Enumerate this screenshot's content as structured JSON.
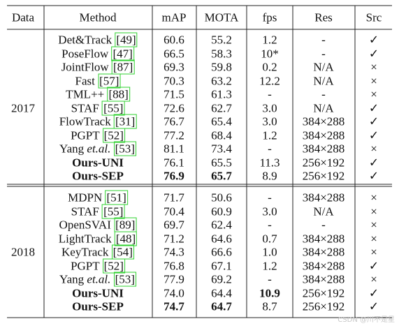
{
  "header": [
    "Data",
    "Method",
    "mAP",
    "MOTA",
    "fps",
    "Res",
    "Src"
  ],
  "groups": [
    {
      "label": "2017",
      "rows": [
        {
          "method": {
            "name": "Det&Track",
            "ref": "[49]"
          },
          "cells": [
            "60.6",
            "55.2",
            "1.2",
            "-",
            "✓"
          ]
        },
        {
          "method": {
            "name": "PoseFlow",
            "ref": "[47]"
          },
          "cells": [
            "66.5",
            "58.3",
            "10*",
            "-",
            "✓"
          ]
        },
        {
          "method": {
            "name": "JointFlow",
            "ref": "[87]"
          },
          "cells": [
            "69.3",
            "59.8",
            "0.2",
            "N/A",
            "×"
          ]
        },
        {
          "method": {
            "name": "Fast",
            "ref": "[57]"
          },
          "cells": [
            "70.3",
            "63.2",
            "12.2",
            "N/A",
            "×"
          ]
        },
        {
          "method": {
            "name": "TML++",
            "ref": "[88]"
          },
          "cells": [
            "71.5",
            "61.3",
            "-",
            "-",
            "×"
          ]
        },
        {
          "method": {
            "name": "STAF",
            "ref": "[55]"
          },
          "cells": [
            "72.6",
            "62.7",
            "3.0",
            "N/A",
            "✓"
          ]
        },
        {
          "method": {
            "name": "FlowTrack",
            "ref": "[31]"
          },
          "cells": [
            "76.7",
            "65.4",
            "3.0",
            "384×288",
            "✓"
          ]
        },
        {
          "method": {
            "name": "PGPT",
            "ref": "[52]"
          },
          "cells": [
            "77.2",
            "68.4",
            "1.2",
            "384×288",
            "✓"
          ]
        },
        {
          "method": {
            "name": "Yang",
            "italic": "et.al.",
            "ref": "[53]"
          },
          "cells": [
            "81.1",
            "73.4",
            "-",
            "384×288",
            "×"
          ]
        },
        {
          "method": {
            "name": "Ours-UNI",
            "bold": true
          },
          "cells": [
            "76.1",
            "65.5",
            "11.3",
            "256×192",
            "✓"
          ]
        },
        {
          "method": {
            "name": "Ours-SEP",
            "bold": true
          },
          "cells": [
            "76.9",
            "65.7",
            "8.9",
            "256×192",
            "✓"
          ],
          "bold_cells": [
            0,
            1
          ]
        }
      ]
    },
    {
      "label": "2018",
      "rows": [
        {
          "method": {
            "name": "MDPN",
            "ref": "[51]"
          },
          "cells": [
            "71.7",
            "50.6",
            "-",
            "384×288",
            "×"
          ]
        },
        {
          "method": {
            "name": "STAF",
            "ref": "[55]"
          },
          "cells": [
            "70.4",
            "60.9",
            "3.0",
            "N/A",
            "×"
          ]
        },
        {
          "method": {
            "name": "OpenSVAI",
            "ref": "[89]"
          },
          "cells": [
            "69.7",
            "62.4",
            "-",
            "-",
            "×"
          ]
        },
        {
          "method": {
            "name": "LightTrack",
            "ref": "[48]"
          },
          "cells": [
            "71.2",
            "64.6",
            "0.7",
            "384×288",
            "×"
          ]
        },
        {
          "method": {
            "name": "KeyTrack",
            "ref": "[54]"
          },
          "cells": [
            "74.3",
            "66.6",
            "1.0",
            "384×288",
            "×"
          ]
        },
        {
          "method": {
            "name": "PGPT",
            "ref": "[52]"
          },
          "cells": [
            "76.8",
            "67.1",
            "1.2",
            "384×288",
            "✓"
          ]
        },
        {
          "method": {
            "name": "Yang",
            "italic": "et.al.",
            "ref": "[53]"
          },
          "cells": [
            "77.9",
            "69.2",
            "-",
            "384×288",
            "×"
          ]
        },
        {
          "method": {
            "name": "Ours-UNI",
            "bold": true
          },
          "cells": [
            "74.0",
            "64.4",
            "10.9",
            "256×192",
            "✓"
          ],
          "bold_cells": [
            2
          ]
        },
        {
          "method": {
            "name": "Ours-SEP",
            "bold": true
          },
          "cells": [
            "74.7",
            "64.7",
            "8.7",
            "256×192",
            "✓"
          ],
          "bold_cells": [
            0,
            1
          ]
        }
      ]
    }
  ],
  "watermark": "CSDN @川不是星"
}
